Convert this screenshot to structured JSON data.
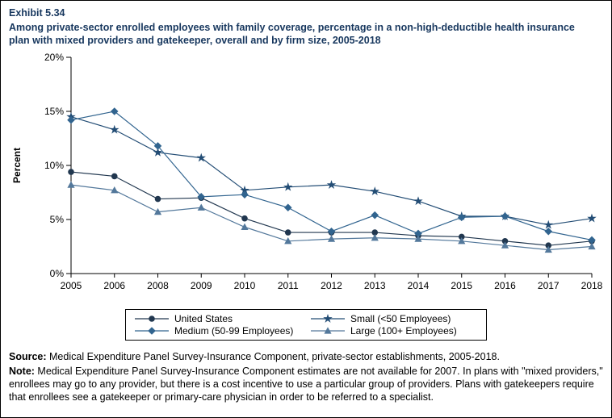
{
  "exhibit_label": "Exhibit 5.34",
  "title": "Among private-sector enrolled employees with family coverage, percentage in a non-high-deductible health insurance plan with mixed providers and gatekeeper, overall and by firm size, 2005-2018",
  "chart_data": {
    "type": "line",
    "ylabel": "Percent",
    "ylim": [
      0,
      20
    ],
    "yticks": [
      "0%",
      "5%",
      "10%",
      "15%",
      "20%"
    ],
    "x": [
      2005,
      2006,
      2008,
      2009,
      2010,
      2011,
      2012,
      2013,
      2014,
      2015,
      2016,
      2017,
      2018
    ],
    "series": [
      {
        "name": "United States",
        "marker": "circle",
        "color": "#21374f",
        "values": [
          9.4,
          9.0,
          6.9,
          7.0,
          5.1,
          3.8,
          3.8,
          3.8,
          3.5,
          3.4,
          3.0,
          2.6,
          3.0
        ]
      },
      {
        "name": "Small (<50 Employees)",
        "marker": "star",
        "color": "#234d75",
        "values": [
          14.5,
          13.3,
          11.2,
          10.7,
          7.7,
          8.0,
          8.2,
          7.6,
          6.7,
          5.3,
          5.3,
          4.5,
          5.1
        ]
      },
      {
        "name": "Medium (50-99 Employees)",
        "marker": "diamond",
        "color": "#31648f",
        "values": [
          14.2,
          15.0,
          11.8,
          7.1,
          7.3,
          6.1,
          3.9,
          5.4,
          3.7,
          5.2,
          5.3,
          3.9,
          3.1
        ]
      },
      {
        "name": "Large (100+ Employees)",
        "marker": "triangle",
        "color": "#53789b",
        "values": [
          8.2,
          7.7,
          5.7,
          6.1,
          4.3,
          3.0,
          3.2,
          3.3,
          3.2,
          3.0,
          2.6,
          2.2,
          2.5
        ]
      }
    ],
    "legend_position": "bottom",
    "grid": false
  },
  "source": {
    "label": "Source:",
    "text": " Medical Expenditure Panel Survey-Insurance Component, private-sector establishments, 2005-2018."
  },
  "note": {
    "label": "Note:",
    "text": " Medical Expenditure Panel Survey-Insurance Component estimates are not available for 2007. In plans with \"mixed providers,\" enrollees may go to any provider, but there is a cost incentive to use a particular group of providers. Plans with gatekeepers require that enrollees see a gatekeeper or primary-care physician in order to be referred to a specialist."
  }
}
